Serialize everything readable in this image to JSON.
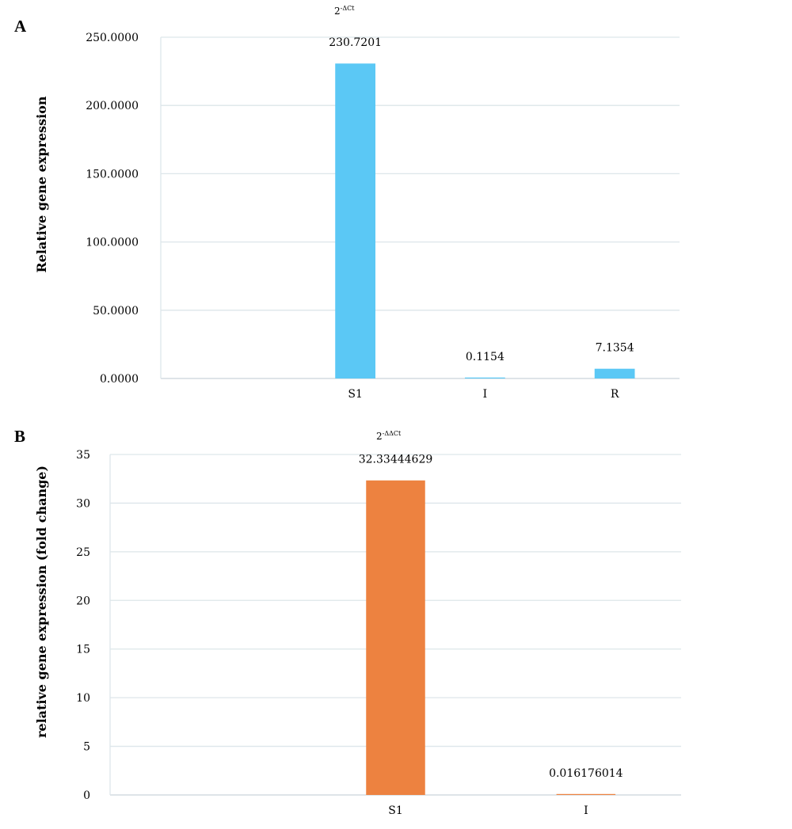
{
  "chart_data": [
    {
      "panel": "A",
      "type": "bar",
      "title": {
        "base": "2",
        "sup": "-ΔCt"
      },
      "ylabel": "Relative gene expression",
      "xlabel": "",
      "categories": [
        "",
        "S1",
        "I",
        "R"
      ],
      "values": [
        null,
        230.7201,
        0.1154,
        7.1354
      ],
      "data_labels": [
        "",
        "230.7201",
        "0.1154",
        "7.1354"
      ],
      "ylim": [
        0,
        250
      ],
      "yticks": [
        "0.0000",
        "50.0000",
        "100.0000",
        "150.0000",
        "200.0000",
        "250.0000"
      ],
      "ytick_values": [
        0,
        50,
        100,
        150,
        200,
        250
      ],
      "grid": true,
      "bar_color": "#5bc8f5"
    },
    {
      "panel": "B",
      "type": "bar",
      "title": {
        "base": "2",
        "sup": "-ΔΔCt"
      },
      "ylabel": "relative gene expression (fold change)",
      "xlabel": "",
      "categories": [
        "",
        "S1",
        "I"
      ],
      "values": [
        null,
        32.33444629,
        0.016176014
      ],
      "data_labels": [
        "",
        "32.33444629",
        "0.016176014"
      ],
      "ylim": [
        0,
        35
      ],
      "yticks": [
        "0",
        "5",
        "10",
        "15",
        "20",
        "25",
        "30",
        "35"
      ],
      "ytick_values": [
        0,
        5,
        10,
        15,
        20,
        25,
        30,
        35
      ],
      "grid": true,
      "bar_color": "#ed8240"
    }
  ]
}
